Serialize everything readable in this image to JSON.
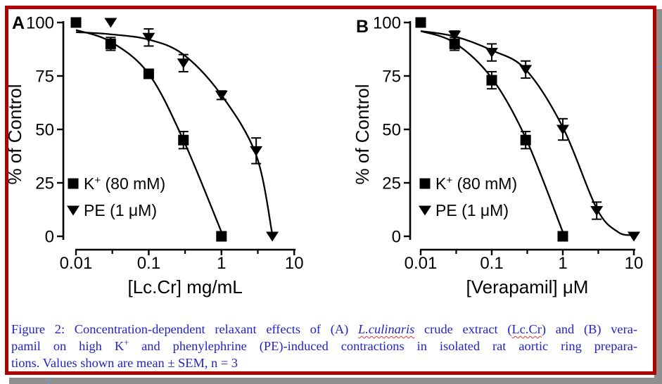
{
  "frame": {
    "border_color": "#b00000",
    "shadow_color": "#8f8f8f",
    "background": "#ffffff",
    "curve_color": "#000000"
  },
  "chart_data": [
    {
      "type": "scatter",
      "panel_label": "A",
      "xscale": "log",
      "xlim": [
        0.01,
        10
      ],
      "ylim": [
        0,
        100
      ],
      "xticks": [
        "0.01",
        "0.1",
        "1",
        "10"
      ],
      "xtick_values": [
        0.01,
        0.1,
        1,
        10
      ],
      "xminor_values": [
        0.0316,
        0.316,
        3.16
      ],
      "ytick_values": [
        0,
        25,
        50,
        75,
        100
      ],
      "yticks": [
        "0",
        "25",
        "50",
        "75",
        "100"
      ],
      "xlabel": "[Lc.Cr] mg/mL",
      "ylabel": "% of Control",
      "legend": [
        {
          "label": "K+ (80 mM)",
          "marker": "square"
        },
        {
          "label": "PE (1 μM)",
          "marker": "triangle-down"
        }
      ],
      "series": [
        {
          "name": "K+ (80 mM)",
          "marker": "square",
          "points": [
            {
              "x": 0.01,
              "y": 100,
              "err": 0
            },
            {
              "x": 0.03,
              "y": 90,
              "err": 3
            },
            {
              "x": 0.1,
              "y": 76,
              "err": 0
            },
            {
              "x": 0.3,
              "y": 45,
              "err": 4
            },
            {
              "x": 1,
              "y": 0,
              "err": 0
            }
          ],
          "fit": [
            [
              0.01,
              96.5
            ],
            [
              0.03,
              91
            ],
            [
              0.1,
              76
            ],
            [
              0.3,
              45
            ],
            [
              1,
              2
            ]
          ]
        },
        {
          "name": "PE (1 μM)",
          "marker": "triangle-down",
          "points": [
            {
              "x": 0.03,
              "y": 100,
              "err": 0
            },
            {
              "x": 0.1,
              "y": 93,
              "err": 4
            },
            {
              "x": 0.3,
              "y": 81,
              "err": 4
            },
            {
              "x": 1,
              "y": 66,
              "err": 2
            },
            {
              "x": 3,
              "y": 40,
              "err": 6
            },
            {
              "x": 5,
              "y": 0,
              "err": 0
            }
          ],
          "fit": [
            [
              0.01,
              95.5
            ],
            [
              0.03,
              94.5
            ],
            [
              0.1,
              92
            ],
            [
              0.3,
              85
            ],
            [
              1,
              66
            ],
            [
              3,
              38
            ],
            [
              5,
              1
            ]
          ]
        }
      ]
    },
    {
      "type": "scatter",
      "panel_label": "B",
      "xscale": "log",
      "xlim": [
        0.01,
        10
      ],
      "ylim": [
        0,
        100
      ],
      "xticks": [
        "0.01",
        "0.1",
        "1",
        "10"
      ],
      "xtick_values": [
        0.01,
        0.1,
        1,
        10
      ],
      "xminor_values": [
        0.0316,
        0.316,
        3.16
      ],
      "ytick_values": [
        0,
        25,
        50,
        75,
        100
      ],
      "yticks": [
        "0",
        "25",
        "50",
        "75",
        "100"
      ],
      "xlabel": "[Verapamil] μM",
      "ylabel": "% of Control",
      "legend": [
        {
          "label": "K+ (80 mM)",
          "marker": "square"
        },
        {
          "label": "PE (1 μM)",
          "marker": "triangle-down"
        }
      ],
      "series": [
        {
          "name": "K+ (80 mM)",
          "marker": "square",
          "points": [
            {
              "x": 0.01,
              "y": 100,
              "err": 0
            },
            {
              "x": 0.03,
              "y": 90,
              "err": 3
            },
            {
              "x": 0.1,
              "y": 73,
              "err": 4
            },
            {
              "x": 0.3,
              "y": 45,
              "err": 4
            },
            {
              "x": 1,
              "y": 0,
              "err": 0
            }
          ],
          "fit": [
            [
              0.01,
              96
            ],
            [
              0.03,
              90.5
            ],
            [
              0.1,
              74
            ],
            [
              0.3,
              46
            ],
            [
              1,
              2
            ]
          ]
        },
        {
          "name": "PE (1 μM)",
          "marker": "triangle-down",
          "points": [
            {
              "x": 0.03,
              "y": 94,
              "err": 2
            },
            {
              "x": 0.1,
              "y": 86,
              "err": 4
            },
            {
              "x": 0.3,
              "y": 78,
              "err": 4
            },
            {
              "x": 1,
              "y": 50,
              "err": 5
            },
            {
              "x": 3,
              "y": 12,
              "err": 4
            },
            {
              "x": 10,
              "y": 0,
              "err": 0
            }
          ],
          "fit": [
            [
              0.01,
              96
            ],
            [
              0.03,
              93.5
            ],
            [
              0.1,
              87
            ],
            [
              0.3,
              78
            ],
            [
              1,
              51
            ],
            [
              3,
              13
            ],
            [
              6,
              2
            ],
            [
              10,
              0.5
            ]
          ]
        }
      ]
    }
  ],
  "caption": {
    "color": "#2323c8",
    "squiggle_color": "#e03232",
    "lines": [
      {
        "justify": true,
        "segments": [
          {
            "t": "Figure 2: Concentration-dependent relaxant effects of (A) "
          },
          {
            "t": "L.culinaris",
            "style": "italic-squiggle"
          },
          {
            "t": " crude extract ("
          },
          {
            "t": "Lc.Cr",
            "style": "squiggle"
          },
          {
            "t": ") and (B) vera-"
          }
        ]
      },
      {
        "justify": true,
        "segments": [
          {
            "t": "pamil on high K"
          },
          {
            "t": "+",
            "style": "sup"
          },
          {
            "t": " and phenylephrine (PE)-induced contractions in isolated rat aortic ring prepara-"
          }
        ]
      },
      {
        "justify": false,
        "segments": [
          {
            "t": "tions. Values shown are mean ± SEM, n = 3"
          }
        ]
      }
    ]
  }
}
